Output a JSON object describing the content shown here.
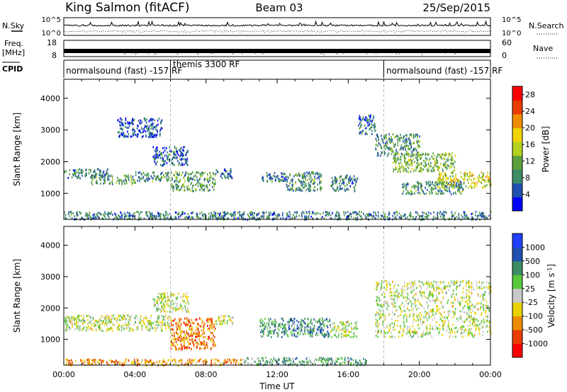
{
  "header": {
    "station": "King Salmon (fitACF)",
    "beam": "Beam 03",
    "date": "25/Sep/2015"
  },
  "strip_panels": {
    "nsky_label": "N.Sky",
    "nsky_ticks": [
      "10^5",
      "10^0"
    ],
    "nsearch_label": "N.Search",
    "nsearch_ticks": [
      "10^5",
      "10^0"
    ],
    "freq_label": "Freq.",
    "freq_unit": "[MHz]",
    "freq_ticks": [
      "18",
      "8"
    ],
    "nave_label": "Nave",
    "nave_ticks": [
      "60",
      "0"
    ],
    "cpid_label": "CPID",
    "cpid_segments": [
      {
        "label": "normalsound (fast) -157 RF",
        "start_hour": 0
      },
      {
        "label": "themis 3300 RF",
        "start_hour": 6
      },
      {
        "label": "normalsound (fast) -157 RF",
        "start_hour": 18
      }
    ]
  },
  "chart_data": [
    {
      "type": "heatmap",
      "title": "",
      "xlabel": "Time UT",
      "ylabel": "Slant Range [km]",
      "colorbar_label": "Power [dB]",
      "x_ticks": [
        "00:00",
        "04:00",
        "08:00",
        "12:00",
        "16:00",
        "20:00",
        "00:00"
      ],
      "xlim_hours": [
        0,
        24
      ],
      "y_ticks": [
        1000,
        2000,
        3000,
        4000
      ],
      "ylim": [
        180,
        4600
      ],
      "colorbar_ticks": [
        4,
        8,
        12,
        16,
        20,
        24,
        28
      ],
      "colorbar_range": [
        0,
        30
      ],
      "colors": [
        "#0000ff",
        "#2050b0",
        "#3c8c64",
        "#5aa03c",
        "#b4d21e",
        "#f0d200",
        "#f08c00",
        "#e83c00",
        "#ff0000"
      ],
      "dashed_lines_hours": [
        6,
        18
      ],
      "scatter_regions": [
        {
          "t": [
            0.0,
            2.5
          ],
          "r": [
            1500,
            1800
          ],
          "level": 0.25
        },
        {
          "t": [
            1.5,
            4.0
          ],
          "r": [
            1300,
            1600
          ],
          "level": 0.35
        },
        {
          "t": [
            4.0,
            6.0
          ],
          "r": [
            1400,
            1700
          ],
          "level": 0.3
        },
        {
          "t": [
            5.0,
            7.0
          ],
          "r": [
            1900,
            2500
          ],
          "level": 0.2
        },
        {
          "t": [
            6.0,
            8.5
          ],
          "r": [
            1100,
            1700
          ],
          "level": 0.35
        },
        {
          "t": [
            8.5,
            9.5
          ],
          "r": [
            1500,
            1800
          ],
          "level": 0.2
        },
        {
          "t": [
            3.0,
            5.5
          ],
          "r": [
            2800,
            3400
          ],
          "level": 0.15
        },
        {
          "t": [
            11.0,
            12.5
          ],
          "r": [
            1400,
            1700
          ],
          "level": 0.25
        },
        {
          "t": [
            12.5,
            14.5
          ],
          "r": [
            1100,
            1700
          ],
          "level": 0.3
        },
        {
          "t": [
            15.0,
            16.5
          ],
          "r": [
            1100,
            1600
          ],
          "level": 0.25
        },
        {
          "t": [
            16.5,
            17.5
          ],
          "r": [
            2900,
            3500
          ],
          "level": 0.2
        },
        {
          "t": [
            17.5,
            20.0
          ],
          "r": [
            2200,
            2900
          ],
          "level": 0.3
        },
        {
          "t": [
            18.5,
            22.0
          ],
          "r": [
            1700,
            2300
          ],
          "level": 0.4
        },
        {
          "t": [
            21.0,
            24.0
          ],
          "r": [
            1200,
            1700
          ],
          "level": 0.55
        },
        {
          "t": [
            19.0,
            22.5
          ],
          "r": [
            1000,
            1400
          ],
          "level": 0.3
        },
        {
          "t": [
            0.0,
            24.0
          ],
          "r": [
            200,
            450
          ],
          "level": 0.25
        }
      ]
    },
    {
      "type": "heatmap",
      "title": "",
      "xlabel": "Time UT",
      "ylabel": "Slant Range [km]",
      "colorbar_label": "Velocity [m s^-1]",
      "x_ticks": [
        "00:00",
        "04:00",
        "08:00",
        "12:00",
        "16:00",
        "20:00",
        "00:00"
      ],
      "xlim_hours": [
        0,
        24
      ],
      "y_ticks": [
        1000,
        2000,
        3000,
        4000
      ],
      "ylim": [
        180,
        4600
      ],
      "colorbar_ticks": [
        "1000",
        "500",
        "100",
        "25",
        "-25",
        "-100",
        "-500",
        "-1000"
      ],
      "colors": [
        "#2040ff",
        "#2050b0",
        "#3c8c64",
        "#58c83c",
        "#c8c8c8",
        "#e8d200",
        "#f08c00",
        "#e83c00",
        "#ff0000"
      ],
      "dashed_lines_hours": [
        6,
        18
      ],
      "scatter_regions": [
        {
          "t": [
            0.0,
            6.0
          ],
          "r": [
            1300,
            1800
          ],
          "level": 0.5
        },
        {
          "t": [
            6.0,
            8.5
          ],
          "r": [
            700,
            1700
          ],
          "level": 0.75
        },
        {
          "t": [
            5.0,
            7.0
          ],
          "r": [
            1900,
            2500
          ],
          "level": 0.5
        },
        {
          "t": [
            8.5,
            9.5
          ],
          "r": [
            1500,
            1800
          ],
          "level": 0.5
        },
        {
          "t": [
            11.0,
            15.0
          ],
          "r": [
            1100,
            1700
          ],
          "level": 0.3
        },
        {
          "t": [
            15.0,
            16.5
          ],
          "r": [
            1100,
            1600
          ],
          "level": 0.5
        },
        {
          "t": [
            17.5,
            24.0
          ],
          "r": [
            1100,
            2900
          ],
          "level": 0.5
        },
        {
          "t": [
            10.0,
            17.0
          ],
          "r": [
            200,
            450
          ],
          "level": 0.35
        },
        {
          "t": [
            0.0,
            10.0
          ],
          "r": [
            200,
            400
          ],
          "level": 0.7
        }
      ]
    }
  ]
}
